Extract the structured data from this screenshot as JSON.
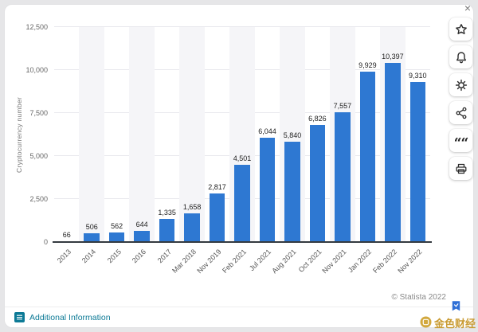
{
  "window": {
    "close": "×"
  },
  "chart_data": {
    "type": "bar",
    "title": "",
    "xlabel": "",
    "ylabel": "Cryptocurrency number",
    "categories": [
      "2013",
      "2014",
      "2015",
      "2016",
      "2017",
      "Mar 2018",
      "Nov 2019",
      "Feb 2021",
      "Jul 2021",
      "Aug 2021",
      "Oct 2021",
      "Nov 2021",
      "Jan 2022",
      "Feb 2022",
      "Nov 2022"
    ],
    "values": [
      66,
      506,
      562,
      644,
      1335,
      1658,
      2817,
      4501,
      6044,
      5840,
      6826,
      7557,
      9929,
      10397,
      9310
    ],
    "value_labels": [
      "66",
      "506",
      "562",
      "644",
      "1,335",
      "1,658",
      "2,817",
      "4,501",
      "6,044",
      "5,840",
      "6,826",
      "7,557",
      "9,929",
      "10,397",
      "9,310"
    ],
    "yticks": [
      {
        "v": 0,
        "label": "0"
      },
      {
        "v": 2500,
        "label": "2,500"
      },
      {
        "v": 5000,
        "label": "5,000"
      },
      {
        "v": 7500,
        "label": "7,500"
      },
      {
        "v": 10000,
        "label": "10,000"
      },
      {
        "v": 12500,
        "label": "12,500"
      }
    ],
    "ylim": [
      0,
      12500
    ],
    "grid": true,
    "legend": false,
    "bar_color": "#2e78d2",
    "band_color": "#f5f5f8"
  },
  "toolbar": {
    "quote_glyph": "““",
    "buttons": [
      "star",
      "bell",
      "gear",
      "share",
      "quote",
      "print"
    ]
  },
  "footer": {
    "additional_information": "Additional Information",
    "copyright": "© Statista 2022"
  },
  "watermark": {
    "text": "金色财经"
  }
}
